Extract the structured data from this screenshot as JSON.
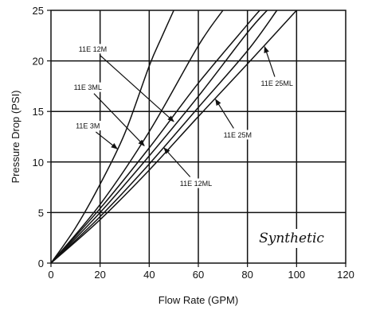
{
  "chart_data": {
    "type": "line",
    "title": "",
    "xlabel": "Flow Rate (GPM)",
    "ylabel": "Pressure Drop (PSI)",
    "xlim": [
      0,
      120
    ],
    "ylim": [
      0,
      25
    ],
    "xticks": [
      0,
      20,
      40,
      60,
      80,
      100,
      120
    ],
    "yticks": [
      0,
      5,
      10,
      15,
      20,
      25
    ],
    "grid": true,
    "legend": "none",
    "watermark": "Synthetic",
    "series": [
      {
        "name": "11E 3M",
        "x": [
          0,
          10,
          20,
          30,
          40,
          45,
          50
        ],
        "y": [
          0,
          3.5,
          7.8,
          12.8,
          19.5,
          22.3,
          25
        ]
      },
      {
        "name": "11E 3ML",
        "x": [
          0,
          20,
          40,
          60,
          70
        ],
        "y": [
          0,
          5.8,
          13.0,
          21.5,
          25
        ]
      },
      {
        "name": "11E 12M",
        "x": [
          0,
          20,
          40,
          60,
          80,
          85
        ],
        "y": [
          0,
          5.4,
          11.4,
          17.8,
          23.6,
          25
        ]
      },
      {
        "name": "11E 12ML",
        "x": [
          0,
          20,
          40,
          60,
          80,
          88
        ],
        "y": [
          0,
          5.0,
          10.6,
          16.5,
          22.8,
          25
        ]
      },
      {
        "name": "11E 25M",
        "x": [
          0,
          20,
          40,
          60,
          80,
          92
        ],
        "y": [
          0,
          4.6,
          9.8,
          15.4,
          21.0,
          25
        ]
      },
      {
        "name": "11E 25ML",
        "x": [
          0,
          20,
          40,
          60,
          80,
          100
        ],
        "y": [
          0,
          4.3,
          9.2,
          14.5,
          19.7,
          25
        ]
      }
    ],
    "annotations": [
      {
        "text": "11E 12M",
        "label_at": [
          17,
          21.2
        ],
        "points_to": [
          50,
          14.0
        ]
      },
      {
        "text": "11E 3ML",
        "label_at": [
          15,
          17.4
        ],
        "points_to": [
          38,
          11.6
        ]
      },
      {
        "text": "11E 3M",
        "label_at": [
          15,
          13.6
        ],
        "points_to": [
          27,
          11.3
        ]
      },
      {
        "text": "11E 12ML",
        "label_at": [
          59,
          7.9
        ],
        "points_to": [
          46,
          11.4
        ]
      },
      {
        "text": "11E 25M",
        "label_at": [
          76,
          12.7
        ],
        "points_to": [
          67,
          16.2
        ]
      },
      {
        "text": "11E 25ML",
        "label_at": [
          92,
          17.8
        ],
        "points_to": [
          87,
          21.4
        ]
      }
    ]
  }
}
